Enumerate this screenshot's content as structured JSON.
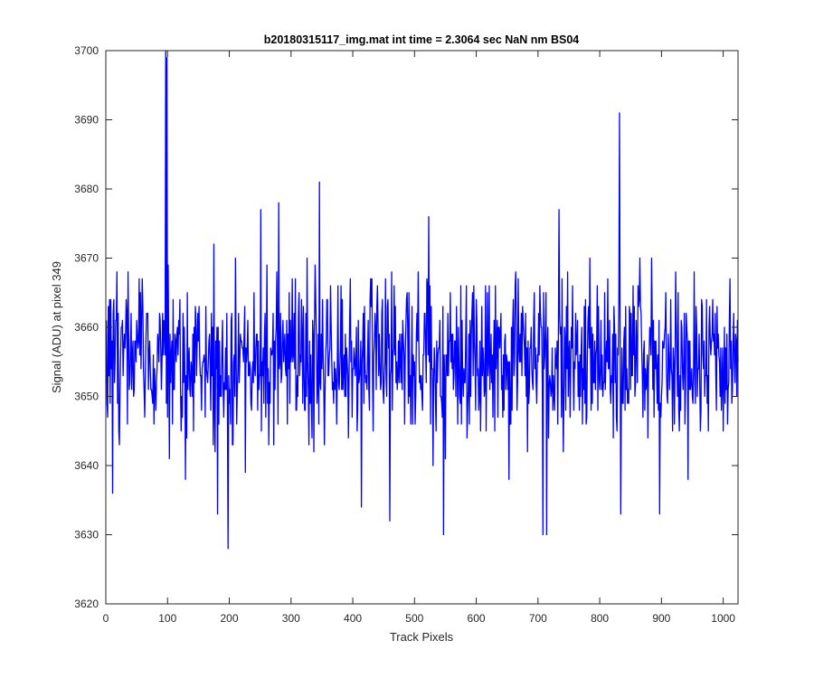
{
  "chart_data": {
    "type": "line",
    "title": "b20180315117_img.mat int time = 2.3064 sec  NaN nm BS04",
    "xlabel": "Track Pixels",
    "ylabel": "Signal (ADU) at pixel 349",
    "xlim": [
      0,
      1024
    ],
    "ylim": [
      3620,
      3700
    ],
    "xticks": [
      0,
      100,
      200,
      300,
      400,
      500,
      600,
      700,
      800,
      900,
      1000
    ],
    "yticks": [
      3620,
      3630,
      3640,
      3650,
      3660,
      3670,
      3680,
      3690,
      3700
    ],
    "grid": false,
    "legend": "none",
    "line_color": "#0000ff",
    "series": [
      {
        "x_start": 1,
        "x_step": 1,
        "baseline": 3655,
        "noise_sd": 6,
        "seed": 20180315,
        "annotated_points": [
          {
            "x": 97,
            "y": 3700
          },
          {
            "x": 99,
            "y": 3699
          },
          {
            "x": 11,
            "y": 3636
          },
          {
            "x": 181,
            "y": 3633
          },
          {
            "x": 198,
            "y": 3628
          },
          {
            "x": 251,
            "y": 3677
          },
          {
            "x": 280,
            "y": 3678
          },
          {
            "x": 346,
            "y": 3681
          },
          {
            "x": 414,
            "y": 3634
          },
          {
            "x": 460,
            "y": 3632
          },
          {
            "x": 523,
            "y": 3676
          },
          {
            "x": 547,
            "y": 3630
          },
          {
            "x": 708,
            "y": 3630
          },
          {
            "x": 714,
            "y": 3630
          },
          {
            "x": 734,
            "y": 3677
          },
          {
            "x": 832,
            "y": 3691
          },
          {
            "x": 834,
            "y": 3633
          },
          {
            "x": 897,
            "y": 3633
          }
        ]
      }
    ]
  }
}
